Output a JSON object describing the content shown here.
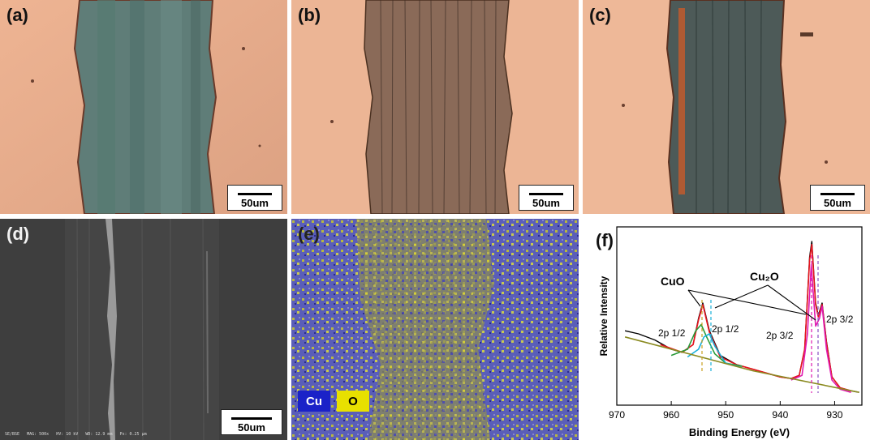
{
  "panels": {
    "a": {
      "label": "(a)",
      "scale": "50um"
    },
    "b": {
      "label": "(b)",
      "scale": "50um"
    },
    "c": {
      "label": "(c)",
      "scale": "50um"
    },
    "d": {
      "label": "(d)",
      "scale": "50um",
      "footer": "SE/BSE   MAG: 500x   HV: 10 kV   WD: 12.9 mm   Px: 0.25 µm"
    },
    "e": {
      "label": "(e)",
      "legend": [
        {
          "name": "Cu",
          "color": "#1a22c8",
          "text_color": "#ffffff"
        },
        {
          "name": "O",
          "color": "#e8e000",
          "text_color": "#000000"
        }
      ]
    },
    "f": {
      "label": "(f)"
    }
  },
  "chart_data": {
    "type": "line",
    "xlabel": "Binding Energy (eV)",
    "ylabel": "Relative Intensity",
    "xlim": [
      970,
      925
    ],
    "xticks": [
      970,
      960,
      950,
      940,
      930
    ],
    "annotations": [
      "CuO",
      "Cu₂O",
      "2p 1/2",
      "2p 1/2",
      "2p 3/2",
      "2p 3/2"
    ],
    "series": [
      {
        "color": "#000000",
        "x": [
          968.5,
          966,
          963,
          960,
          958,
          956,
          955,
          954.2,
          953,
          951,
          948,
          945,
          942,
          940,
          938,
          936.5,
          935.5,
          934.6,
          934.2,
          933.5,
          933,
          932.3,
          931.5,
          930.5,
          929,
          927,
          925.5
        ],
        "y": [
          0.42,
          0.4,
          0.36,
          0.3,
          0.28,
          0.33,
          0.5,
          0.6,
          0.42,
          0.26,
          0.2,
          0.17,
          0.14,
          0.12,
          0.11,
          0.13,
          0.3,
          0.9,
          1.0,
          0.6,
          0.52,
          0.6,
          0.35,
          0.12,
          0.05,
          0.03,
          0.02
        ]
      },
      {
        "color": "#e8141e",
        "x": [
          962,
          958,
          956,
          955,
          954.2,
          953,
          951,
          948,
          945,
          942,
          940,
          938,
          936.5,
          935.5,
          934.6,
          934.2,
          933.5,
          933,
          932.3,
          931.5,
          930.5,
          929,
          927
        ],
        "y": [
          0.33,
          0.28,
          0.33,
          0.49,
          0.59,
          0.41,
          0.25,
          0.2,
          0.17,
          0.14,
          0.12,
          0.11,
          0.13,
          0.3,
          0.88,
          0.98,
          0.59,
          0.51,
          0.59,
          0.34,
          0.12,
          0.05,
          0.03
        ]
      },
      {
        "color": "#2a9a3a",
        "x": [
          960,
          957,
          955.5,
          954.5,
          953.5,
          952,
          950,
          947
        ],
        "y": [
          0.26,
          0.3,
          0.42,
          0.46,
          0.38,
          0.27,
          0.21,
          0.19
        ]
      },
      {
        "color": "#1ab0d8",
        "x": [
          957,
          955,
          954,
          953,
          952,
          950,
          947
        ],
        "y": [
          0.25,
          0.3,
          0.38,
          0.4,
          0.32,
          0.21,
          0.18
        ]
      },
      {
        "color": "#e01ab0",
        "x": [
          938,
          936,
          935,
          934.3,
          933.5,
          932.8,
          932.3,
          931.5,
          930.5,
          929,
          927
        ],
        "y": [
          0.1,
          0.13,
          0.4,
          0.85,
          0.45,
          0.5,
          0.58,
          0.3,
          0.1,
          0.04,
          0.02
        ]
      },
      {
        "color": "#8a8a20",
        "x": [
          968.5,
          945,
          925.5
        ],
        "y": [
          0.38,
          0.16,
          0.02
        ]
      }
    ]
  }
}
